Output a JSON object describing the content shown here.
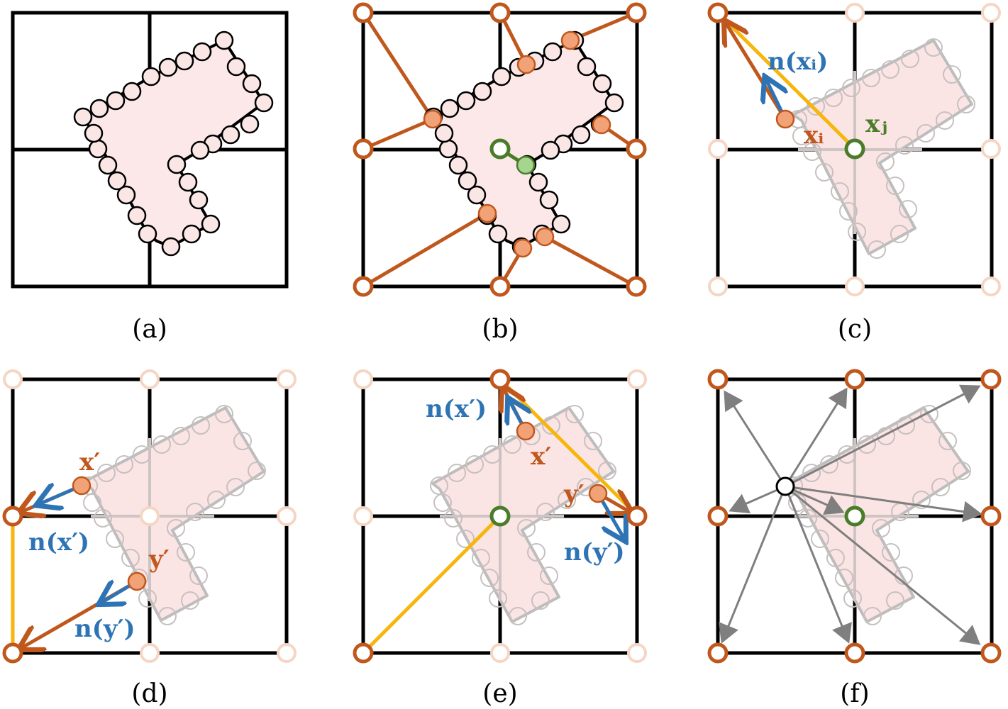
{
  "panels": [
    {
      "id": "a",
      "caption": "(a)"
    },
    {
      "id": "b",
      "caption": "(b)"
    },
    {
      "id": "c",
      "caption": "(c)",
      "labels": {
        "normal": "n(xᵢ)",
        "xi": "xᵢ",
        "xj": "xⱼ"
      }
    },
    {
      "id": "d",
      "caption": "(d)",
      "labels": {
        "x_prime": "x′",
        "y_prime": "y′",
        "n_x_prime": "n(x′)",
        "n_y_prime": "n(y′)"
      }
    },
    {
      "id": "e",
      "caption": "(e)",
      "labels": {
        "x_prime": "x′",
        "y_prime": "y′",
        "n_x_prime": "n(x′)",
        "n_y_prime": "n(y′)"
      }
    },
    {
      "id": "f",
      "caption": "(f)"
    }
  ],
  "colors": {
    "grid": "#000000",
    "shape_fill": "#fce8e8",
    "orange": "#c0571c",
    "orange_fill": "#f2a277",
    "green": "#4a7c2a",
    "green_fill": "#a6d58f",
    "yellow": "#f6b60e",
    "blue": "#2e74b5",
    "grey_arrow": "#7f7f7f"
  }
}
